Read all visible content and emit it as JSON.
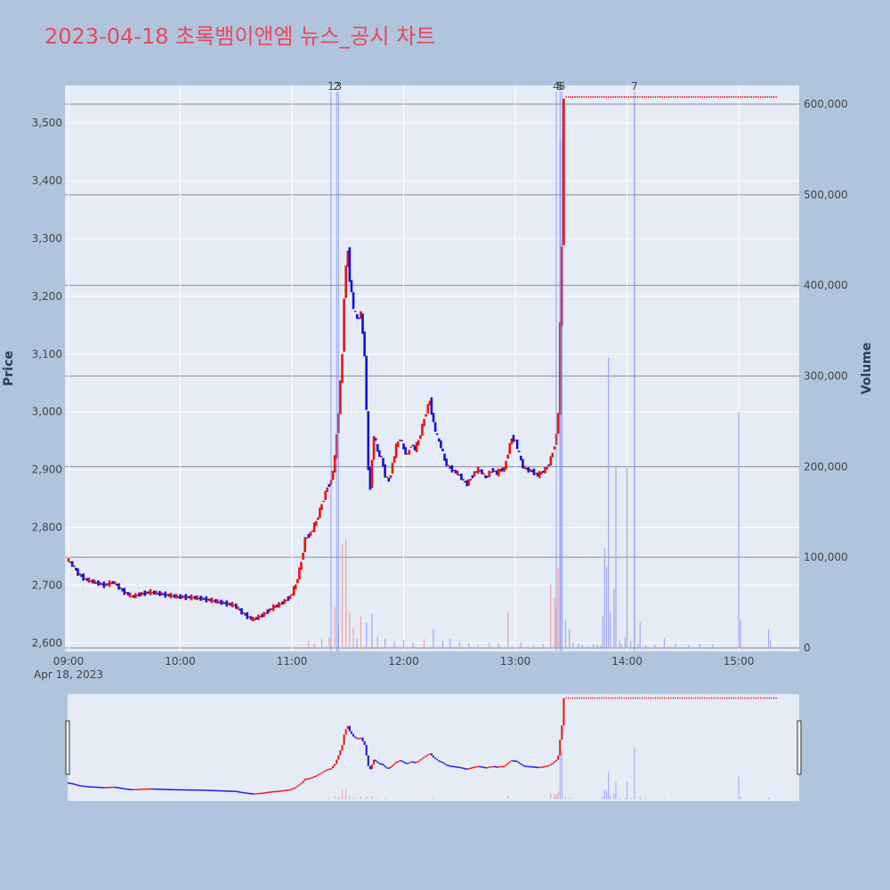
{
  "title": "2023-04-18 초록뱀이앤엠 뉴스_공시 차트",
  "colors": {
    "background": "#b0c4de",
    "plot": "#e5ecf6",
    "up": "#ee1111",
    "down": "#1111dd",
    "title": "#e8485a",
    "up_volume": "#f4a0a0",
    "down_volume": "#9fa8f0"
  },
  "chart_data": {
    "type": "candlestick",
    "yaxis": {
      "title": "Price",
      "range": [
        2585,
        3565
      ],
      "ticks": [
        "2,600",
        "2,700",
        "2,800",
        "2,900",
        "3,000",
        "3,100",
        "3,200",
        "3,300",
        "3,400",
        "3,500"
      ],
      "tick_values": [
        2600,
        2700,
        2800,
        2900,
        3000,
        3100,
        3200,
        3300,
        3400,
        3500
      ]
    },
    "y2axis": {
      "title": "Volume",
      "range": [
        0,
        600000
      ],
      "ticks": [
        "0",
        "100,000",
        "200,000",
        "300,000",
        "400,000",
        "500,000",
        "600,000"
      ],
      "tick_values": [
        0,
        100000,
        200000,
        300000,
        400000,
        500000,
        600000
      ]
    },
    "xaxis": {
      "ticks": [
        "09:00",
        "10:00",
        "11:00",
        "12:00",
        "13:00",
        "14:00",
        "15:00"
      ],
      "tick_minutes": [
        0,
        60,
        120,
        180,
        240,
        300,
        360
      ],
      "date_label": "Apr 18, 2023",
      "range_minutes": [
        0,
        392
      ]
    },
    "news_markers": [
      {
        "label": "1",
        "minute": 141
      },
      {
        "label": "2",
        "minute": 144
      },
      {
        "label": "3",
        "minute": 145
      },
      {
        "label": "4",
        "minute": 262
      },
      {
        "label": "5",
        "minute": 264
      },
      {
        "label": "6",
        "minute": 265
      },
      {
        "label": "7",
        "minute": 304
      }
    ],
    "price_path": [
      [
        0,
        2745
      ],
      [
        3,
        2735
      ],
      [
        6,
        2720
      ],
      [
        10,
        2710
      ],
      [
        15,
        2705
      ],
      [
        20,
        2700
      ],
      [
        25,
        2705
      ],
      [
        30,
        2690
      ],
      [
        35,
        2680
      ],
      [
        40,
        2685
      ],
      [
        45,
        2688
      ],
      [
        50,
        2685
      ],
      [
        55,
        2682
      ],
      [
        60,
        2680
      ],
      [
        70,
        2678
      ],
      [
        80,
        2672
      ],
      [
        90,
        2665
      ],
      [
        95,
        2650
      ],
      [
        100,
        2640
      ],
      [
        105,
        2648
      ],
      [
        110,
        2660
      ],
      [
        115,
        2668
      ],
      [
        120,
        2680
      ],
      [
        123,
        2700
      ],
      [
        126,
        2740
      ],
      [
        128,
        2780
      ],
      [
        131,
        2790
      ],
      [
        134,
        2810
      ],
      [
        137,
        2840
      ],
      [
        140,
        2870
      ],
      [
        142,
        2880
      ],
      [
        144,
        2920
      ],
      [
        146,
        3000
      ],
      [
        148,
        3100
      ],
      [
        149,
        3200
      ],
      [
        150,
        3250
      ],
      [
        151,
        3280
      ],
      [
        152,
        3230
      ],
      [
        154,
        3180
      ],
      [
        156,
        3160
      ],
      [
        158,
        3170
      ],
      [
        160,
        3100
      ],
      [
        161,
        3000
      ],
      [
        162,
        2900
      ],
      [
        163,
        2870
      ],
      [
        165,
        2960
      ],
      [
        167,
        2930
      ],
      [
        169,
        2920
      ],
      [
        171,
        2890
      ],
      [
        173,
        2880
      ],
      [
        175,
        2910
      ],
      [
        177,
        2940
      ],
      [
        179,
        2955
      ],
      [
        181,
        2935
      ],
      [
        183,
        2925
      ],
      [
        185,
        2945
      ],
      [
        187,
        2935
      ],
      [
        189,
        2950
      ],
      [
        191,
        2975
      ],
      [
        193,
        3000
      ],
      [
        195,
        3020
      ],
      [
        197,
        2980
      ],
      [
        199,
        2955
      ],
      [
        201,
        2940
      ],
      [
        203,
        2915
      ],
      [
        205,
        2905
      ],
      [
        207,
        2900
      ],
      [
        209,
        2895
      ],
      [
        211,
        2890
      ],
      [
        213,
        2880
      ],
      [
        215,
        2875
      ],
      [
        217,
        2885
      ],
      [
        219,
        2895
      ],
      [
        221,
        2900
      ],
      [
        223,
        2895
      ],
      [
        225,
        2885
      ],
      [
        227,
        2895
      ],
      [
        229,
        2900
      ],
      [
        231,
        2893
      ],
      [
        233,
        2900
      ],
      [
        235,
        2900
      ],
      [
        237,
        2930
      ],
      [
        239,
        2955
      ],
      [
        241,
        2950
      ],
      [
        243,
        2925
      ],
      [
        245,
        2905
      ],
      [
        247,
        2900
      ],
      [
        249,
        2898
      ],
      [
        251,
        2895
      ],
      [
        253,
        2890
      ],
      [
        255,
        2895
      ],
      [
        257,
        2900
      ],
      [
        259,
        2910
      ],
      [
        261,
        2930
      ],
      [
        263,
        2960
      ],
      [
        264,
        3000
      ],
      [
        265,
        3150
      ],
      [
        266,
        3285
      ],
      [
        267,
        3545
      ]
    ],
    "upper_limit": {
      "price": 3545,
      "start_minute": 267,
      "end_minute": 380
    },
    "volume_spikes": [
      [
        129,
        8000,
        "up"
      ],
      [
        132,
        5000,
        "up"
      ],
      [
        136,
        10000,
        "up"
      ],
      [
        140,
        12000,
        "up"
      ],
      [
        143,
        45000,
        "up"
      ],
      [
        145,
        25000,
        "down"
      ],
      [
        147,
        115000,
        "up"
      ],
      [
        149,
        120000,
        "up"
      ],
      [
        151,
        40000,
        "up"
      ],
      [
        153,
        22000,
        "up"
      ],
      [
        155,
        10000,
        "down"
      ],
      [
        157,
        35000,
        "up"
      ],
      [
        160,
        28000,
        "down"
      ],
      [
        163,
        38000,
        "down"
      ],
      [
        166,
        12000,
        "up"
      ],
      [
        170,
        10000,
        "down"
      ],
      [
        175,
        7000,
        "down"
      ],
      [
        180,
        9000,
        "up"
      ],
      [
        185,
        6000,
        "down"
      ],
      [
        191,
        10000,
        "up"
      ],
      [
        196,
        20000,
        "down"
      ],
      [
        201,
        8000,
        "down"
      ],
      [
        205,
        10000,
        "down"
      ],
      [
        210,
        7000,
        "up"
      ],
      [
        215,
        5000,
        "down"
      ],
      [
        220,
        4000,
        "up"
      ],
      [
        226,
        6000,
        "up"
      ],
      [
        231,
        5000,
        "down"
      ],
      [
        236,
        40000,
        "up"
      ],
      [
        243,
        6000,
        "down"
      ],
      [
        250,
        3000,
        "up"
      ],
      [
        255,
        4000,
        "up"
      ],
      [
        259,
        70000,
        "up"
      ],
      [
        261,
        55000,
        "up"
      ],
      [
        262,
        45000,
        "down"
      ],
      [
        263,
        88000,
        "up"
      ],
      [
        264,
        560000,
        "down"
      ],
      [
        265,
        560000,
        "down"
      ],
      [
        267,
        30000,
        "down"
      ],
      [
        269,
        20000,
        "down"
      ],
      [
        271,
        6000,
        "down"
      ],
      [
        274,
        5000,
        "down"
      ],
      [
        276,
        3000,
        "down"
      ],
      [
        279,
        2000,
        "down"
      ],
      [
        282,
        4000,
        "down"
      ],
      [
        284,
        3000,
        "down"
      ],
      [
        286,
        3000,
        "down"
      ],
      [
        287,
        35000,
        "down"
      ],
      [
        288,
        110000,
        "down"
      ],
      [
        289,
        90000,
        "down"
      ],
      [
        290,
        320000,
        "down"
      ],
      [
        291,
        40000,
        "down"
      ],
      [
        293,
        65000,
        "down"
      ],
      [
        294,
        200000,
        "down"
      ],
      [
        296,
        8000,
        "down"
      ],
      [
        297,
        5000,
        "down"
      ],
      [
        299,
        12000,
        "down"
      ],
      [
        300,
        200000,
        "down"
      ],
      [
        302,
        8000,
        "down"
      ],
      [
        304,
        600000,
        "down"
      ],
      [
        306,
        5000,
        "down"
      ],
      [
        307,
        28000,
        "down"
      ],
      [
        310,
        3000,
        "down"
      ],
      [
        315,
        3000,
        "down"
      ],
      [
        320,
        10000,
        "down"
      ],
      [
        326,
        5000,
        "down"
      ],
      [
        333,
        3000,
        "down"
      ],
      [
        339,
        5000,
        "down"
      ],
      [
        346,
        4000,
        "down"
      ],
      [
        360,
        260000,
        "down"
      ],
      [
        361,
        30000,
        "down"
      ],
      [
        376,
        20000,
        "down"
      ],
      [
        377,
        8000,
        "down"
      ]
    ]
  }
}
